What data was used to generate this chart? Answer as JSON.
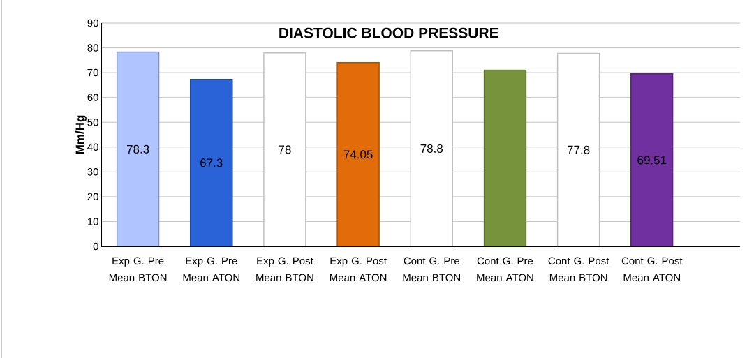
{
  "chart_data": {
    "type": "bar",
    "title": "DIASTOLIC BLOOD PRESSURE",
    "ylabel": "Mm/Hg",
    "categories": [
      "Exp G. Pre Mean BTON",
      "Exp G. Pre Mean ATON",
      "Exp G. Post Mean BTON",
      "Exp G. Post Mean ATON",
      "Cont G. Pre Mean BTON",
      "Cont G. Pre Mean ATON",
      "Cont G. Post Mean BTON",
      "Cont G. Post Mean ATON"
    ],
    "values": [
      78.3,
      67.3,
      78,
      74.05,
      78.8,
      71,
      77.8,
      69.51
    ],
    "value_labels": [
      "78.3",
      "67.3",
      "78",
      "74.05",
      "78.8",
      null,
      "77.8",
      "69.51"
    ],
    "colors": [
      "#b0c4ff",
      "#2a62d8",
      "#ffffff",
      "#e36c0a",
      "#ffffff",
      "#77933c",
      "#ffffff",
      "#7030a0"
    ],
    "ylim": [
      0,
      90
    ],
    "yticks": [
      0,
      10,
      20,
      30,
      40,
      50,
      60,
      70,
      80,
      90
    ],
    "grid": "y"
  }
}
